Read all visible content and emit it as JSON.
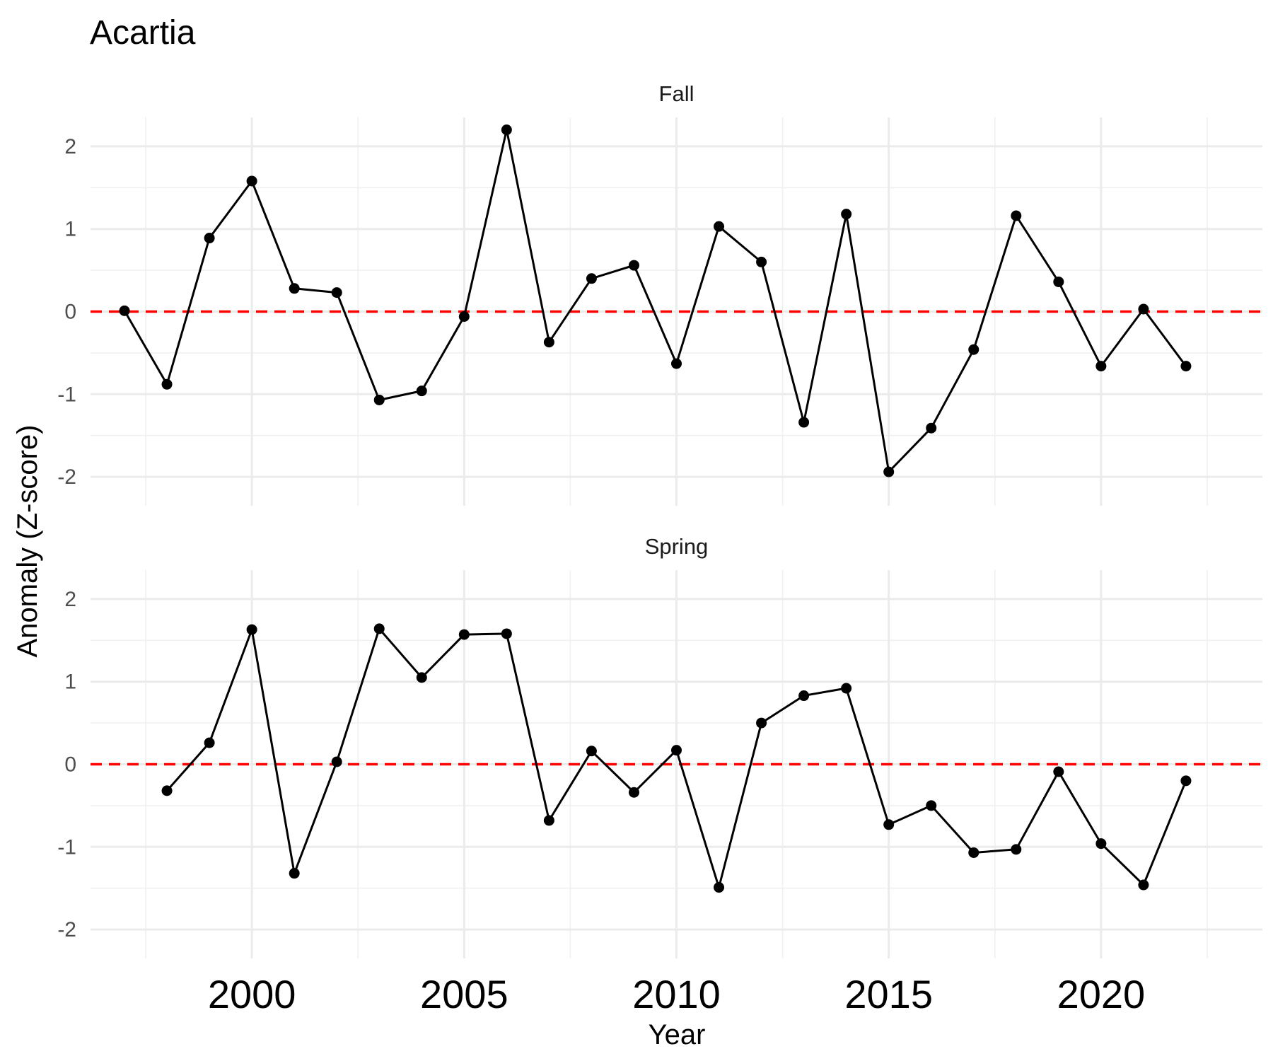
{
  "chart_data": {
    "type": "line",
    "title": "Acartia",
    "xlabel": "Year",
    "ylabel": "Anomaly (Z-score)",
    "xlim": [
      1996.2,
      2023.8
    ],
    "ylim": [
      -2.35,
      2.35
    ],
    "x_ticks": [
      2000,
      2005,
      2010,
      2015,
      2020
    ],
    "y_ticks": [
      -2,
      -1,
      0,
      1,
      2
    ],
    "grid": true,
    "reference_line": {
      "y": 0,
      "color": "#ff0000",
      "style": "dashed"
    },
    "line_color": "#000000",
    "panels": [
      {
        "facet": "Fall",
        "x": [
          1997,
          1998,
          1999,
          2000,
          2001,
          2002,
          2003,
          2004,
          2005,
          2006,
          2007,
          2008,
          2009,
          2010,
          2011,
          2012,
          2013,
          2014,
          2015,
          2016,
          2017,
          2018,
          2019,
          2020,
          2021,
          2022
        ],
        "values": [
          0.01,
          -0.88,
          0.89,
          1.58,
          0.28,
          0.23,
          -1.07,
          -0.96,
          -0.06,
          2.2,
          -0.37,
          0.4,
          0.56,
          -0.63,
          1.03,
          0.6,
          -1.34,
          1.18,
          -1.94,
          -1.41,
          -0.46,
          1.16,
          0.36,
          -0.66,
          0.03,
          -0.66
        ]
      },
      {
        "facet": "Spring",
        "x": [
          1998,
          1999,
          2000,
          2001,
          2002,
          2003,
          2004,
          2005,
          2006,
          2007,
          2008,
          2009,
          2010,
          2011,
          2012,
          2013,
          2014,
          2015,
          2016,
          2017,
          2018,
          2019,
          2020,
          2021,
          2022
        ],
        "values": [
          -0.32,
          0.26,
          1.63,
          -1.32,
          0.03,
          1.64,
          1.05,
          1.57,
          1.58,
          -0.68,
          0.16,
          -0.34,
          0.17,
          -1.49,
          0.5,
          0.83,
          0.92,
          -0.73,
          -0.5,
          -1.07,
          -1.03,
          -0.09,
          -0.96,
          -1.46,
          -0.2
        ]
      }
    ]
  }
}
